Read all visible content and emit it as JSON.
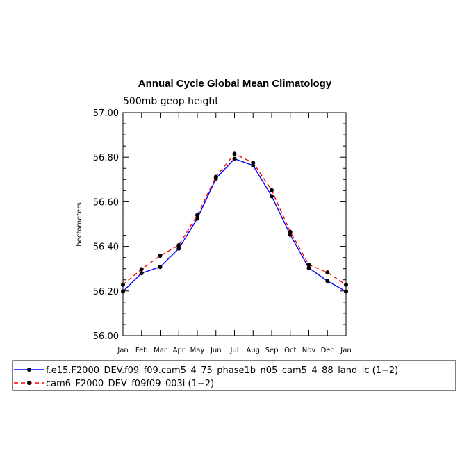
{
  "chart_data": {
    "type": "line",
    "title": "Annual Cycle Global Mean Climatology",
    "subtitle": "500mb geop height",
    "xlabel": "",
    "ylabel": "hectometers",
    "ylim": [
      56.0,
      57.0
    ],
    "yticks": [
      "56.00",
      "56.20",
      "56.40",
      "56.60",
      "56.80",
      "57.00"
    ],
    "categories": [
      "Jan",
      "Feb",
      "Mar",
      "Apr",
      "May",
      "Jun",
      "Jul",
      "Aug",
      "Sep",
      "Oct",
      "Nov",
      "Dec",
      "Jan"
    ],
    "grid": false,
    "legend_position": "bottom",
    "series": [
      {
        "name": "f.e15.F2000_DEV.f09_f09.cam5_4_75_phase1b_n05_cam5_4_88_land_ic (1−2)",
        "color": "#0000ff",
        "line_style": "solid",
        "values": [
          56.198,
          56.28,
          56.308,
          56.39,
          56.525,
          56.704,
          56.793,
          56.763,
          56.625,
          56.452,
          56.303,
          56.245,
          56.198
        ]
      },
      {
        "name": "cam6_F2000_DEV_f09f09_003i (1−2)",
        "color": "#ff0000",
        "line_style": "dashed",
        "values": [
          56.228,
          56.298,
          56.358,
          56.405,
          56.54,
          56.712,
          56.815,
          56.775,
          56.652,
          56.465,
          56.318,
          56.283,
          56.228
        ]
      }
    ]
  }
}
